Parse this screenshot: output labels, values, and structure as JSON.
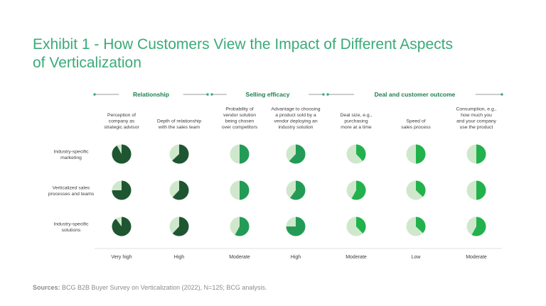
{
  "title_lines": [
    "Exhibit 1 - How Customers View the Impact of Different Aspects",
    "of Verticalization"
  ],
  "source": {
    "label": "Sources:",
    "text": "BCG B2B Buyer Survey on Verticalization (2022), N=125; BCG analysis."
  },
  "colors": {
    "title": "#3aaa78",
    "dark": "#1e5631",
    "mid": "#239b56",
    "bright": "#22b14c",
    "light": "#cfe8cc"
  },
  "chart_data": {
    "type": "pie-matrix",
    "groups": [
      {
        "label": "Relationship",
        "columns": [
          0,
          1
        ]
      },
      {
        "label": "Selling efficacy",
        "columns": [
          2,
          3
        ]
      },
      {
        "label": "Deal and customer outcome",
        "columns": [
          4,
          5,
          6
        ]
      }
    ],
    "columns": [
      {
        "label": [
          "Perception of",
          "company as",
          "strategic advisor"
        ],
        "impact": "Very high",
        "color": "dark"
      },
      {
        "label": [
          "Depth of relationship",
          "with the sales team"
        ],
        "impact": "High",
        "color": "dark"
      },
      {
        "label": [
          "Probability of",
          "vendor solution",
          "being chosen",
          "over competitors"
        ],
        "impact": "Moderate",
        "color": "mid"
      },
      {
        "label": [
          "Advantage to choosing",
          "a product sold by a",
          "vendor deploying an",
          "industry solution"
        ],
        "impact": "High",
        "color": "mid"
      },
      {
        "label": [
          "Deal size, e.g.,",
          "purchasing",
          "more at a time"
        ],
        "impact": "Moderate",
        "color": "bright"
      },
      {
        "label": [
          "Speed of",
          "sales process"
        ],
        "impact": "Low",
        "color": "bright"
      },
      {
        "label": [
          "Consumption, e.g.,",
          "how much you",
          "and your company",
          "use the product"
        ],
        "impact": "Moderate",
        "color": "bright"
      }
    ],
    "rows": [
      {
        "label": [
          "Industry-specific",
          "marketing"
        ],
        "values": [
          0.92,
          0.63,
          0.5,
          0.62,
          0.38,
          0.5,
          0.5
        ]
      },
      {
        "label": [
          "Verticalized sales",
          "processes and teams"
        ],
        "values": [
          0.75,
          0.62,
          0.5,
          0.6,
          0.58,
          0.37,
          0.5
        ]
      },
      {
        "label": [
          "Industry-specific",
          "solutions"
        ],
        "values": [
          0.9,
          0.62,
          0.58,
          0.75,
          0.38,
          0.37,
          0.58
        ]
      }
    ]
  }
}
